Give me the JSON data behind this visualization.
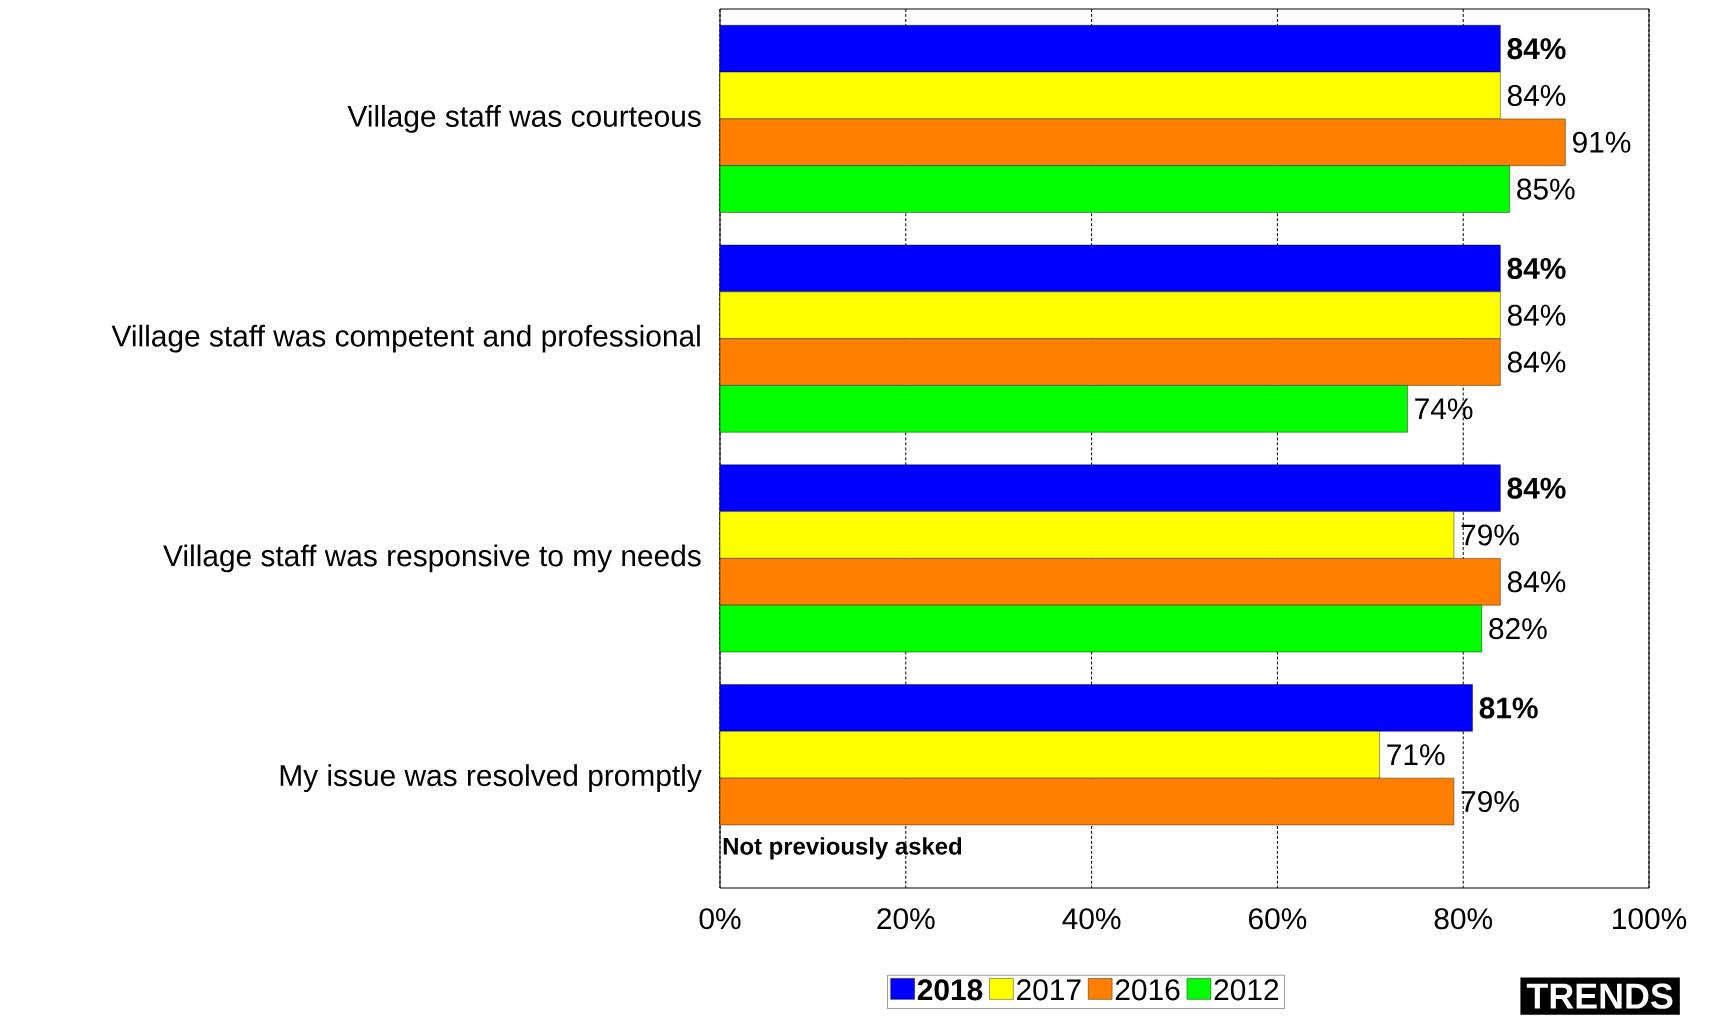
{
  "chart_data": {
    "type": "bar",
    "orientation": "horizontal",
    "categories": [
      "Village staff was courteous",
      "Village staff was competent and professional",
      "Village staff was responsive to my needs",
      "My issue was resolved promptly"
    ],
    "series": [
      {
        "name": "2018",
        "color": "#0000ff",
        "values": [
          84,
          84,
          84,
          81
        ],
        "value_labels": [
          "84%",
          "84%",
          "84%",
          "81%"
        ]
      },
      {
        "name": "2017",
        "color": "#ffff00",
        "values": [
          84,
          84,
          79,
          71
        ],
        "value_labels": [
          "84%",
          "84%",
          "79%",
          "71%"
        ]
      },
      {
        "name": "2016",
        "color": "#ff8000",
        "values": [
          91,
          84,
          84,
          79
        ],
        "value_labels": [
          "91%",
          "84%",
          "84%",
          "79%"
        ]
      },
      {
        "name": "2012",
        "color": "#00ff00",
        "values": [
          85,
          74,
          82,
          null
        ],
        "value_labels": [
          "85%",
          "74%",
          "82%",
          null
        ]
      }
    ],
    "xlim": [
      0,
      100
    ],
    "xticks": [
      {
        "value": 0,
        "label": "0%"
      },
      {
        "value": 20,
        "label": "20%"
      },
      {
        "value": 40,
        "label": "40%"
      },
      {
        "value": 60,
        "label": "60%"
      },
      {
        "value": 80,
        "label": "80%"
      },
      {
        "value": 100,
        "label": "100%"
      }
    ],
    "grid": "x",
    "legend": "bottom",
    "annotations": [
      "Not previously asked",
      "TRENDS"
    ]
  }
}
